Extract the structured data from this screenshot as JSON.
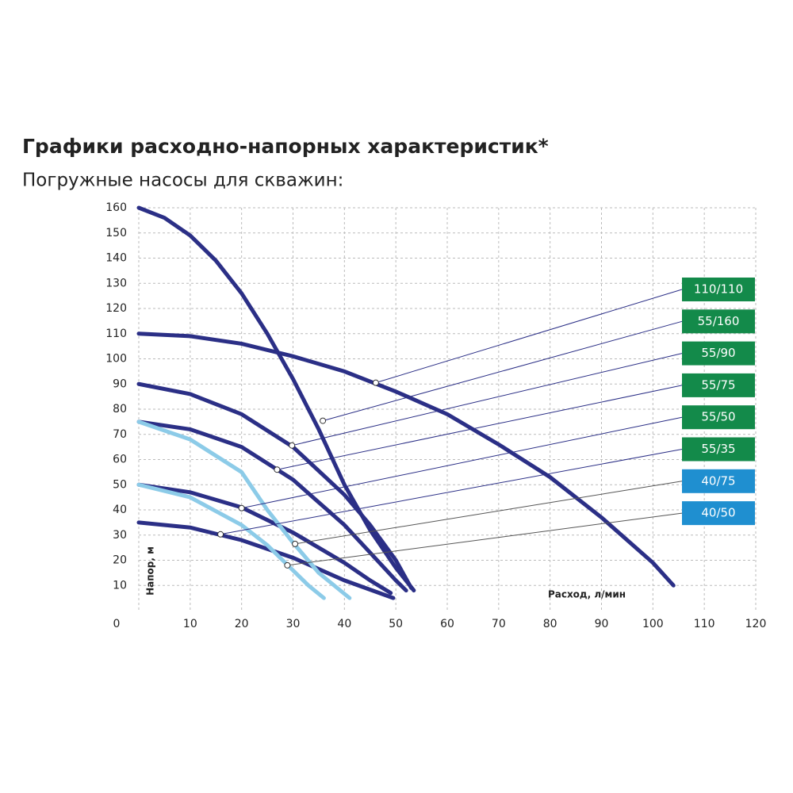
{
  "chart_data": {
    "type": "line",
    "title": "Графики расходно-напорных характеристик*",
    "subtitle": "Погружные насосы для скважин:",
    "x_label": "Расход, л/мин",
    "y_label": "Напор, м",
    "xlim": [
      0,
      120
    ],
    "ylim": [
      0,
      160
    ],
    "xticks": [
      0,
      10,
      20,
      30,
      40,
      50,
      60,
      70,
      80,
      90,
      100,
      110,
      120
    ],
    "yticks": [
      10,
      20,
      30,
      40,
      50,
      60,
      70,
      80,
      90,
      100,
      110,
      120,
      130,
      140,
      150,
      160
    ],
    "grid": true,
    "series": [
      {
        "name": "110/110",
        "color": "#2b2f86",
        "label_color": "#138a4a",
        "x": [
          0,
          10,
          20,
          30,
          40,
          50,
          60,
          70,
          80,
          90,
          100,
          104
        ],
        "values": [
          110,
          109,
          106,
          101,
          95,
          87,
          78,
          66,
          53,
          37,
          19,
          10
        ],
        "marker": [
          46.1,
          90.5
        ]
      },
      {
        "name": "55/160",
        "color": "#2b2f86",
        "label_color": "#138a4a",
        "x": [
          0,
          5,
          10,
          15,
          20,
          25,
          30,
          35,
          40,
          45,
          50,
          53.5
        ],
        "values": [
          160,
          156,
          149,
          139,
          126,
          110,
          92,
          72,
          50,
          32,
          17,
          8
        ],
        "marker": [
          35.8,
          75.4
        ]
      },
      {
        "name": "55/90",
        "color": "#2b2f86",
        "label_color": "#138a4a",
        "x": [
          0,
          10,
          20,
          30,
          40,
          45,
          50,
          53
        ],
        "values": [
          90,
          86,
          78,
          65,
          46,
          34,
          20,
          9
        ],
        "marker": [
          29.8,
          65.6
        ]
      },
      {
        "name": "55/75",
        "color": "#2b2f86",
        "label_color": "#138a4a",
        "x": [
          0,
          10,
          20,
          30,
          40,
          45,
          50,
          52
        ],
        "values": [
          75,
          72,
          65,
          52,
          34,
          23,
          12,
          8
        ],
        "marker": [
          26.9,
          56
        ]
      },
      {
        "name": "55/50",
        "color": "#2b2f86",
        "label_color": "#138a4a",
        "x": [
          0,
          10,
          20,
          30,
          40,
          45,
          49
        ],
        "values": [
          50,
          47,
          41,
          31,
          19,
          12,
          7
        ],
        "marker": [
          20,
          40.7
        ]
      },
      {
        "name": "55/35",
        "color": "#2b2f86",
        "label_color": "#138a4a",
        "x": [
          0,
          10,
          20,
          30,
          40,
          49.5
        ],
        "values": [
          35,
          33,
          28,
          21,
          12,
          5
        ],
        "marker": [
          15.9,
          30.3
        ]
      },
      {
        "name": "40/75",
        "color": "#8ccbe8",
        "label_color": "#1f8fd0",
        "x": [
          0,
          10,
          20,
          25,
          30,
          35,
          41
        ],
        "values": [
          75,
          68,
          55,
          40,
          27,
          15,
          5
        ],
        "marker": [
          30.4,
          26.5
        ]
      },
      {
        "name": "40/50",
        "color": "#8ccbe8",
        "label_color": "#1f8fd0",
        "x": [
          0,
          10,
          20,
          25,
          29,
          33,
          36
        ],
        "values": [
          50,
          45,
          34,
          26,
          18,
          10,
          5
        ],
        "marker": [
          28.9,
          18
        ]
      }
    ]
  }
}
